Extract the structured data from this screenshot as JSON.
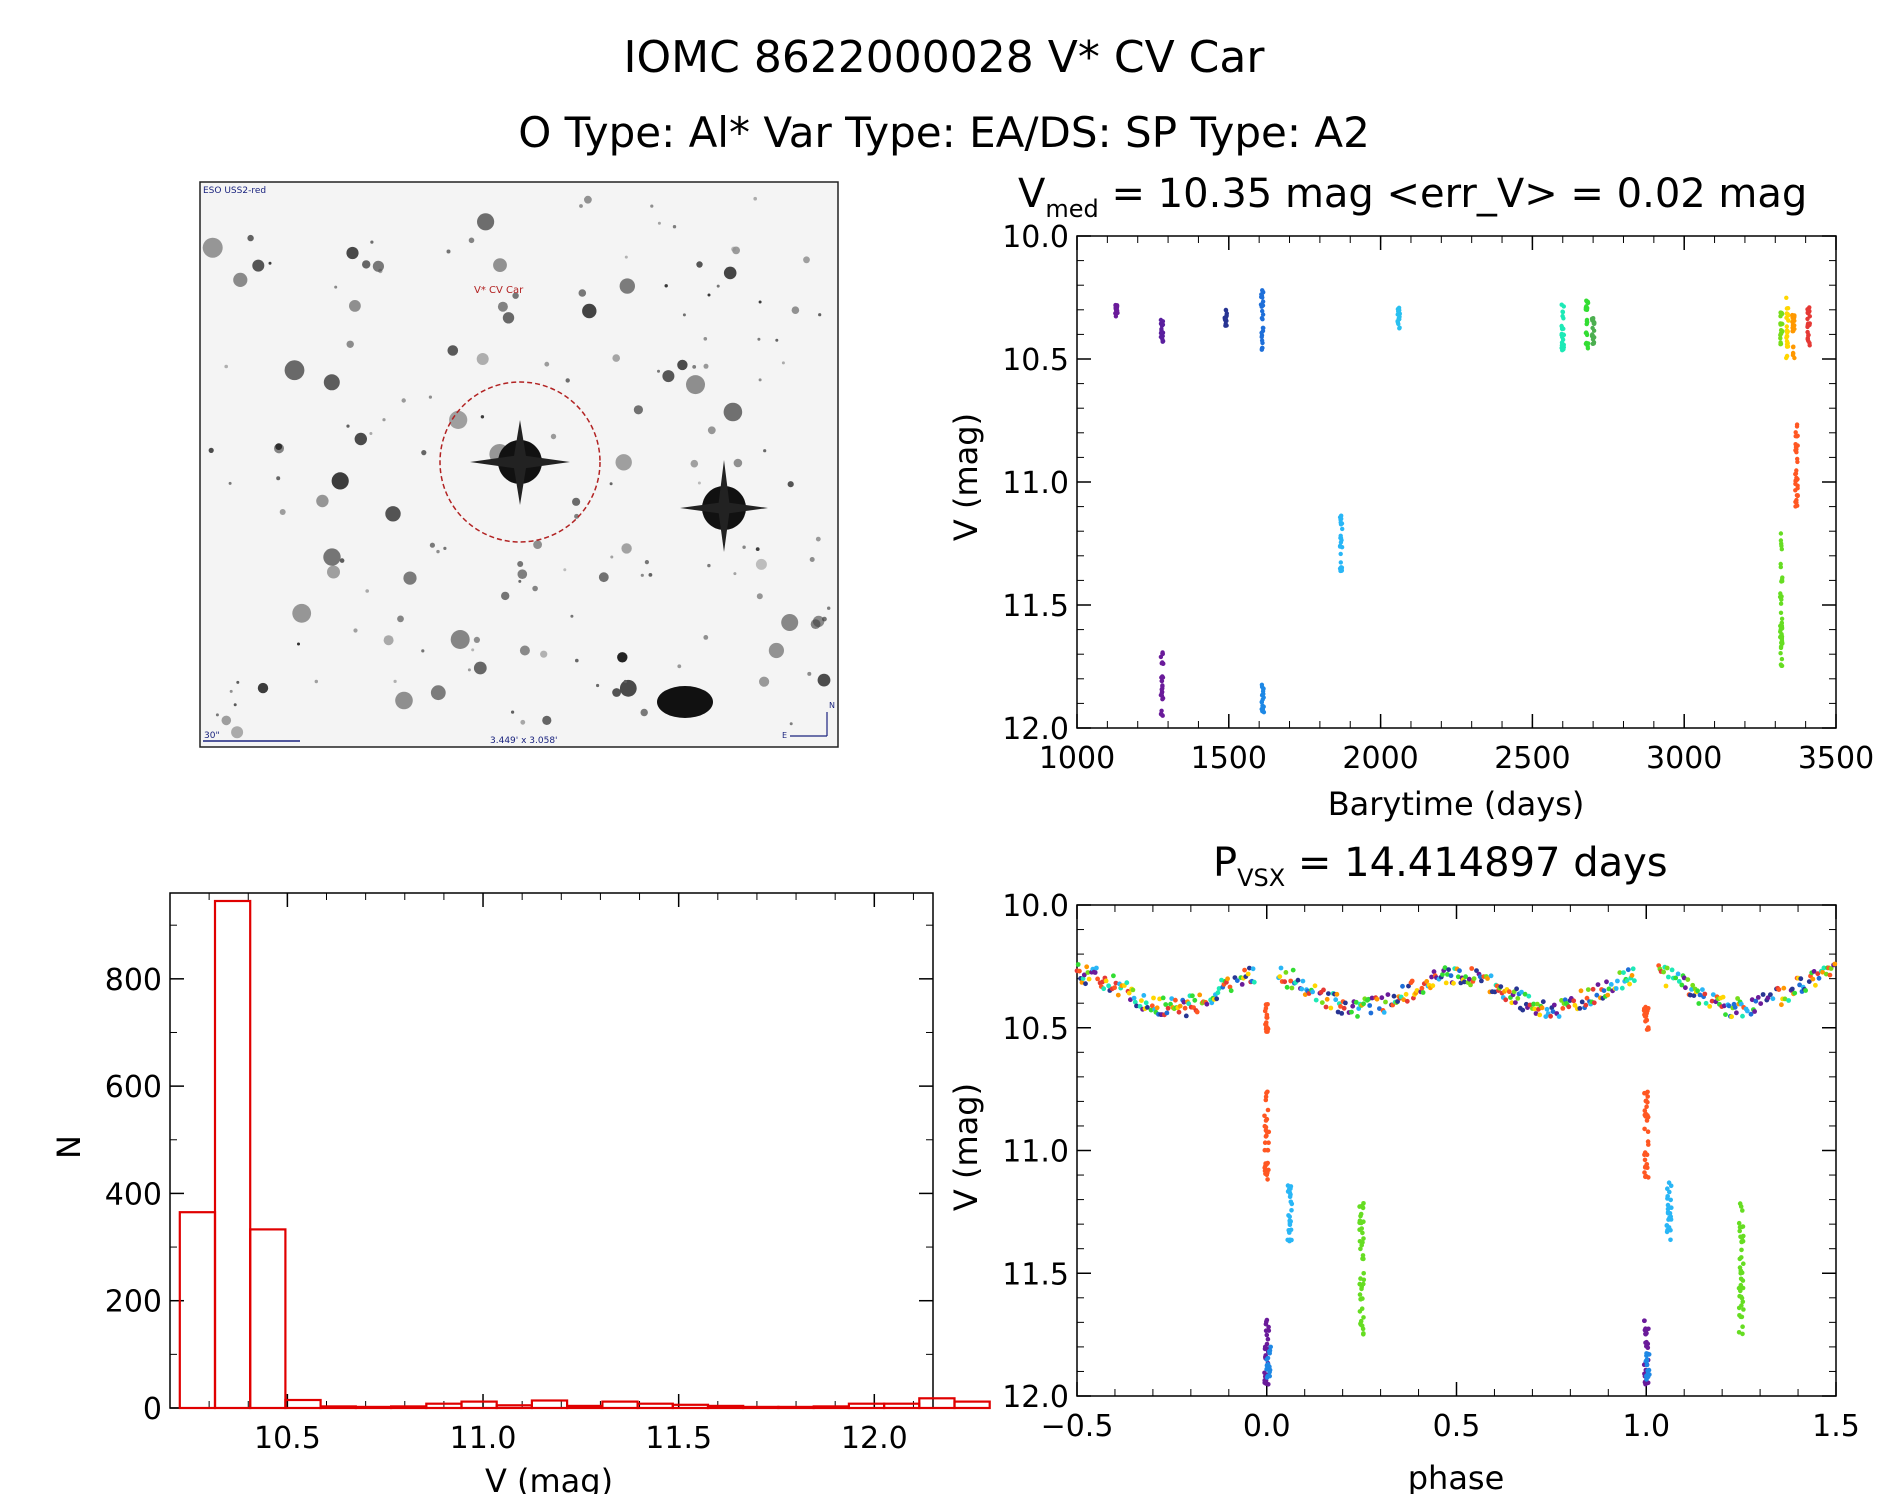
{
  "header": {
    "title_line1": "IOMC 8622000028   V* CV Car",
    "title_line2": "O Type: Al*  Var Type: EA/DS:  SP Type: A2"
  },
  "finder": {
    "survey_label": "ESO USS2-red",
    "target_label": "V* CV Car",
    "scale_label": "30\"",
    "fov_label": "3.449' x 3.058'",
    "north_label": "N",
    "east_label": "E"
  },
  "chart_data": [
    {
      "id": "lightcurve",
      "type": "scatter",
      "title_prefix": "V",
      "title_sub": "med",
      "title_rest": " = 10.35 mag <err_V> = 0.02 mag",
      "xlabel": "Barytime (days)",
      "ylabel": "V (mag)",
      "xlim": [
        1000,
        3500
      ],
      "ylim": [
        12.0,
        10.0
      ],
      "xticks": [
        1000,
        1500,
        2000,
        2500,
        3000,
        3500
      ],
      "yticks": [
        10.0,
        10.5,
        11.0,
        11.5,
        12.0
      ],
      "xtick_labels": [
        "1000",
        "1500",
        "2000",
        "2500",
        "3000",
        "3500"
      ],
      "ytick_labels": [
        "10.0",
        "10.5",
        "11.0",
        "11.5",
        "12.0"
      ],
      "groups": [
        {
          "x": 1130,
          "y_range": [
            10.28,
            10.33
          ],
          "color": "#6a1b9a"
        },
        {
          "x": 1280,
          "y_range": [
            10.34,
            10.43
          ],
          "color": "#5a1f9e"
        },
        {
          "x": 1280,
          "y_range": [
            11.68,
            11.96
          ],
          "color": "#6a1b9a"
        },
        {
          "x": 1490,
          "y_range": [
            10.3,
            10.37
          ],
          "color": "#283593"
        },
        {
          "x": 1610,
          "y_range": [
            10.22,
            10.48
          ],
          "color": "#1e6fd9"
        },
        {
          "x": 1612,
          "y_range": [
            11.8,
            11.94
          ],
          "color": "#1e88e5"
        },
        {
          "x": 1870,
          "y_range": [
            11.13,
            11.37
          ],
          "color": "#29b6f6"
        },
        {
          "x": 2060,
          "y_range": [
            10.29,
            10.38
          ],
          "color": "#29c0f0"
        },
        {
          "x": 2600,
          "y_range": [
            10.27,
            10.48
          ],
          "color": "#1de9b6"
        },
        {
          "x": 2680,
          "y_range": [
            10.26,
            10.47
          ],
          "color": "#33dd33"
        },
        {
          "x": 2700,
          "y_range": [
            10.32,
            10.44
          ],
          "color": "#4caf50"
        },
        {
          "x": 3320,
          "y_range": [
            10.3,
            10.44
          ],
          "color": "#76dd1a"
        },
        {
          "x": 3320,
          "y_range": [
            11.2,
            11.75
          ],
          "color": "#66dd22"
        },
        {
          "x": 3340,
          "y_range": [
            10.25,
            10.5
          ],
          "color": "#ffd600"
        },
        {
          "x": 3360,
          "y_range": [
            10.3,
            10.5
          ],
          "color": "#ff9800"
        },
        {
          "x": 3370,
          "y_range": [
            10.75,
            11.12
          ],
          "color": "#ff5722"
        },
        {
          "x": 3410,
          "y_range": [
            10.28,
            10.45
          ],
          "color": "#e53935"
        }
      ]
    },
    {
      "id": "histogram",
      "type": "bar",
      "xlabel": "V (mag)",
      "ylabel": "N",
      "xlim": [
        10.2,
        12.15
      ],
      "ylim": [
        0,
        960
      ],
      "xticks": [
        10.5,
        11.0,
        11.5,
        12.0
      ],
      "yticks": [
        0,
        200,
        400,
        600,
        800
      ],
      "xtick_labels": [
        "10.5",
        "11.0",
        "11.5",
        "12.0"
      ],
      "ytick_labels": [
        "0",
        "200",
        "400",
        "600",
        "800"
      ],
      "bin_width": 0.09,
      "bin_start": 10.225,
      "counts": [
        365,
        945,
        333,
        15,
        3,
        2,
        3,
        8,
        12,
        5,
        14,
        4,
        12,
        8,
        6,
        4,
        2,
        2,
        3,
        8,
        8,
        18,
        12
      ]
    },
    {
      "id": "phased",
      "type": "scatter",
      "title_prefix": "P",
      "title_sub": "VSX",
      "title_rest": " = 14.414897 days",
      "xlabel": "phase",
      "ylabel": "V (mag)",
      "xlim": [
        -0.5,
        1.5
      ],
      "ylim": [
        12.0,
        10.0
      ],
      "xticks": [
        -0.5,
        0.0,
        0.5,
        1.0,
        1.5
      ],
      "yticks": [
        10.0,
        10.5,
        11.0,
        11.5,
        12.0
      ],
      "xtick_labels": [
        "−0.5",
        "0.0",
        "0.5",
        "1.0",
        "1.5"
      ],
      "ytick_labels": [
        "10.0",
        "10.5",
        "11.0",
        "11.5",
        "12.0"
      ],
      "palette": [
        "#e53935",
        "#ff5722",
        "#ff9800",
        "#ffd600",
        "#76dd1a",
        "#33dd33",
        "#1de9b6",
        "#29b6f6",
        "#1e6fd9",
        "#283593",
        "#6a1b9a"
      ],
      "clusters": [
        {
          "phase": 0.0,
          "y_range": [
            10.4,
            10.52
          ],
          "color": "#ff5722"
        },
        {
          "phase": 0.0,
          "y_range": [
            10.75,
            11.12
          ],
          "color": "#ff5722"
        },
        {
          "phase": 0.06,
          "y_range": [
            11.13,
            11.37
          ],
          "color": "#29b6f6"
        },
        {
          "phase": 0.25,
          "y_range": [
            11.2,
            11.75
          ],
          "color": "#66dd22"
        },
        {
          "phase": 0.0,
          "y_range": [
            11.68,
            11.96
          ],
          "color": "#6a1b9a"
        },
        {
          "phase": 0.005,
          "y_range": [
            11.8,
            11.94
          ],
          "color": "#1e88e5"
        }
      ]
    }
  ]
}
